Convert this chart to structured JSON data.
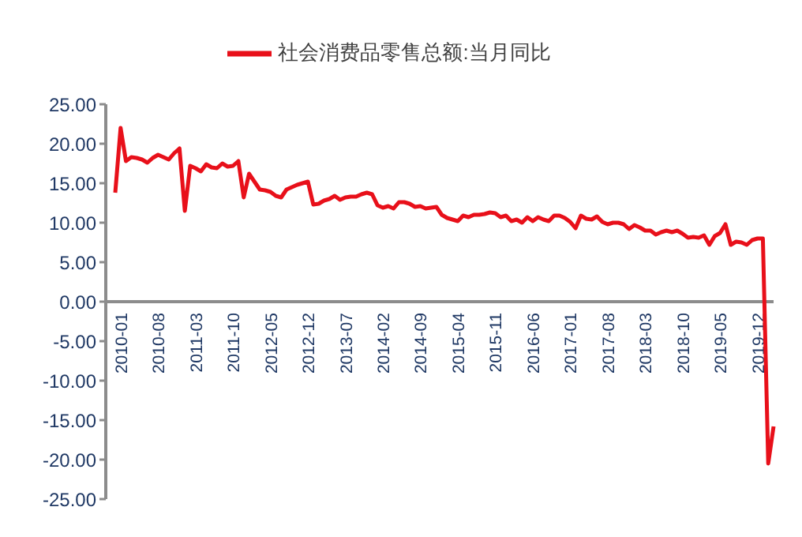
{
  "chart_data": {
    "type": "line",
    "categories": [
      null,
      "2010-01",
      null,
      null,
      null,
      null,
      null,
      null,
      "2010-08",
      null,
      null,
      null,
      null,
      null,
      null,
      "2011-03",
      null,
      null,
      null,
      null,
      null,
      null,
      "2011-10",
      null,
      null,
      null,
      null,
      null,
      null,
      "2012-05",
      null,
      null,
      null,
      null,
      null,
      null,
      "2012-12",
      null,
      null,
      null,
      null,
      null,
      null,
      "2013-07",
      null,
      null,
      null,
      null,
      null,
      null,
      "2014-02",
      null,
      null,
      null,
      null,
      null,
      null,
      "2014-09",
      null,
      null,
      null,
      null,
      null,
      null,
      "2015-04",
      null,
      null,
      null,
      null,
      null,
      null,
      "2015-11",
      null,
      null,
      null,
      null,
      null,
      null,
      "2016-06",
      null,
      null,
      null,
      null,
      null,
      null,
      "2017-01",
      null,
      null,
      null,
      null,
      null,
      null,
      "2017-08",
      null,
      null,
      null,
      null,
      null,
      null,
      "2018-03",
      null,
      null,
      null,
      null,
      null,
      null,
      "2018-10",
      null,
      null,
      null,
      null,
      null,
      null,
      "2019-05",
      null,
      null,
      null,
      null,
      null,
      null,
      "2019-12",
      null,
      null,
      null
    ],
    "series": [
      {
        "name": "社会消费品零售总额:当月同比",
        "color": "#e8101a",
        "values": [
          13.8,
          22.0,
          17.8,
          18.3,
          18.2,
          18.0,
          17.6,
          18.2,
          18.6,
          18.3,
          18.0,
          18.8,
          19.4,
          11.5,
          17.2,
          16.9,
          16.5,
          17.4,
          17.0,
          16.9,
          17.5,
          17.1,
          17.2,
          17.8,
          13.2,
          16.2,
          15.2,
          14.2,
          14.1,
          13.9,
          13.4,
          13.2,
          14.2,
          14.5,
          14.8,
          15.0,
          15.2,
          12.3,
          12.4,
          12.8,
          13.0,
          13.4,
          12.9,
          13.2,
          13.3,
          13.3,
          13.6,
          13.8,
          13.6,
          12.2,
          11.9,
          12.1,
          11.8,
          12.6,
          12.6,
          12.4,
          12.0,
          12.1,
          11.8,
          11.9,
          12.0,
          11.0,
          10.6,
          10.4,
          10.2,
          10.9,
          10.7,
          11.0,
          11.0,
          11.1,
          11.3,
          11.2,
          10.7,
          10.9,
          10.2,
          10.4,
          10.0,
          10.7,
          10.2,
          10.7,
          10.4,
          10.2,
          10.9,
          10.9,
          10.6,
          10.1,
          9.3,
          10.9,
          10.5,
          10.4,
          10.8,
          10.1,
          9.8,
          10.0,
          10.0,
          9.8,
          9.2,
          9.7,
          9.4,
          9.0,
          9.0,
          8.5,
          8.8,
          9.0,
          8.8,
          9.0,
          8.6,
          8.1,
          8.2,
          8.1,
          8.4,
          7.2,
          8.3,
          8.7,
          9.8,
          7.2,
          7.6,
          7.5,
          7.2,
          7.8,
          8.0,
          8.0,
          -20.5,
          -15.8
        ]
      }
    ],
    "ylim": [
      -25,
      25
    ],
    "yticks": [
      {
        "value": 25,
        "label": "25.00"
      },
      {
        "value": 20,
        "label": "20.00"
      },
      {
        "value": 15,
        "label": "15.00"
      },
      {
        "value": 10,
        "label": "10.00"
      },
      {
        "value": 5,
        "label": "5.00"
      },
      {
        "value": 0,
        "label": "0.00"
      },
      {
        "value": -5,
        "label": "-5.00"
      },
      {
        "value": -10,
        "label": "-10.00"
      },
      {
        "value": -15,
        "label": "-15.00"
      },
      {
        "value": -20,
        "label": "-20.00"
      },
      {
        "value": -25,
        "label": "-25.00"
      }
    ],
    "legend": "top",
    "grid": false
  }
}
